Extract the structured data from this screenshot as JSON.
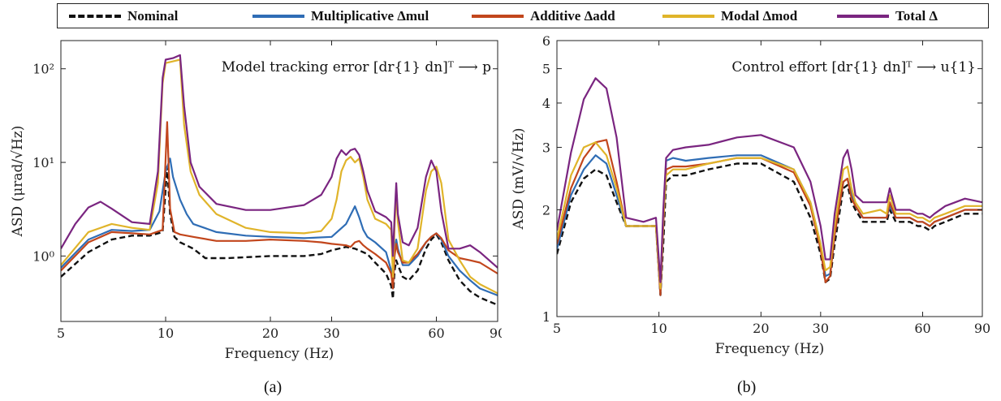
{
  "legend": {
    "items": [
      {
        "label": "Nominal",
        "color": "#111111",
        "style": "dashed"
      },
      {
        "label": "Multiplicative Δmul",
        "color": "#2f6db5",
        "style": "solid"
      },
      {
        "label": "Additive Δadd",
        "color": "#c2461c",
        "style": "solid"
      },
      {
        "label": "Modal Δmod",
        "color": "#e0b42a",
        "style": "solid"
      },
      {
        "label": "Total Δ",
        "color": "#7a2580",
        "style": "solid"
      }
    ]
  },
  "captions": {
    "a": "(a)",
    "b": "(b)"
  },
  "chart_data": [
    {
      "type": "line",
      "title": "Model tracking error [dr{1} dn]ᵀ ⟶ p",
      "xlabel": "Frequency (Hz)",
      "ylabel": "ASD (μrad/√Hz)",
      "xscale": "log",
      "yscale": "log",
      "xlim": [
        5,
        90
      ],
      "ylim": [
        0.2,
        200
      ],
      "xticks": [
        5,
        10,
        20,
        30,
        60,
        90
      ],
      "xticklabels": [
        "5",
        "10",
        "20",
        "30",
        "60",
        "90"
      ],
      "yticks": [
        1,
        10,
        100
      ],
      "yticklabels": [
        "10⁰",
        "10¹",
        "10²"
      ],
      "series": [
        {
          "name": "Nominal",
          "x": [
            5,
            6,
            7,
            8,
            9,
            9.8,
            10.1,
            10.3,
            10.6,
            11,
            12,
            13,
            15,
            20,
            25,
            28,
            30,
            33,
            35,
            38,
            40,
            43,
            44.5,
            45,
            45.5,
            46,
            46.5,
            48,
            50,
            53,
            56,
            58,
            60,
            62,
            65,
            70,
            75,
            80,
            90
          ],
          "y": [
            0.6,
            1.1,
            1.5,
            1.65,
            1.65,
            1.8,
            9,
            2.8,
            1.6,
            1.4,
            1.2,
            0.95,
            0.95,
            1.0,
            1.0,
            1.05,
            1.15,
            1.25,
            1.2,
            1.05,
            0.85,
            0.65,
            0.48,
            0.35,
            0.7,
            0.9,
            0.8,
            0.6,
            0.55,
            0.7,
            1.2,
            1.5,
            1.7,
            1.4,
            0.9,
            0.55,
            0.42,
            0.36,
            0.3
          ]
        },
        {
          "name": "Multiplicative Δmul",
          "x": [
            5,
            6,
            7,
            8,
            9,
            9.6,
            10,
            10.3,
            10.5,
            11,
            11.5,
            12,
            14,
            17,
            20,
            25,
            30,
            33,
            35,
            36,
            37,
            38,
            40,
            43,
            44.5,
            45,
            45.5,
            46,
            46.5,
            48,
            50,
            53,
            56,
            58,
            60,
            62,
            65,
            70,
            75,
            80,
            90
          ],
          "y": [
            0.75,
            1.5,
            1.9,
            1.85,
            1.9,
            3,
            8,
            11,
            7,
            4,
            2.8,
            2.2,
            1.8,
            1.65,
            1.6,
            1.55,
            1.6,
            2.2,
            3.4,
            2.6,
            1.9,
            1.6,
            1.4,
            1.1,
            0.7,
            0.45,
            1.1,
            1.5,
            1.2,
            0.8,
            0.8,
            1.0,
            1.4,
            1.6,
            1.75,
            1.5,
            1.0,
            0.7,
            0.55,
            0.45,
            0.38
          ]
        },
        {
          "name": "Additive Δadd",
          "x": [
            5,
            6,
            7,
            8,
            9,
            9.8,
            10.1,
            10.3,
            10.6,
            11,
            12,
            14,
            17,
            20,
            25,
            28,
            30,
            33,
            34,
            35,
            36,
            37,
            38,
            40,
            43,
            44.5,
            45,
            45.5,
            46,
            46.5,
            48,
            50,
            53,
            56,
            58,
            60,
            62,
            65,
            70,
            75,
            80,
            90
          ],
          "y": [
            0.7,
            1.4,
            1.8,
            1.75,
            1.7,
            1.9,
            27,
            3.2,
            1.8,
            1.7,
            1.6,
            1.45,
            1.45,
            1.5,
            1.45,
            1.4,
            1.35,
            1.3,
            1.25,
            1.4,
            1.45,
            1.3,
            1.2,
            1.05,
            0.85,
            0.65,
            0.45,
            1.0,
            1.35,
            1.1,
            0.85,
            0.85,
            1.05,
            1.4,
            1.6,
            1.75,
            1.55,
            1.15,
            0.95,
            0.9,
            0.85,
            0.65
          ]
        },
        {
          "name": "Modal Δmod",
          "x": [
            5,
            6,
            7,
            8,
            9,
            9.5,
            9.8,
            10,
            10.5,
            11,
            11.3,
            11.8,
            12.5,
            14,
            17,
            20,
            25,
            28,
            30,
            31,
            32,
            33,
            34,
            35,
            36,
            37,
            38,
            40,
            43,
            44.5,
            45,
            45.5,
            46,
            46.5,
            48,
            50,
            53,
            56,
            58,
            60,
            62,
            65,
            70,
            75,
            80,
            90
          ],
          "y": [
            0.8,
            1.8,
            2.2,
            2.0,
            1.9,
            6,
            70,
            115,
            120,
            125,
            25,
            8,
            4.5,
            2.8,
            2.0,
            1.8,
            1.75,
            1.85,
            2.5,
            4,
            8,
            10.5,
            11.5,
            10,
            11,
            7,
            4,
            2.5,
            2.2,
            1.9,
            0.6,
            2.0,
            5,
            2.3,
            0.9,
            0.85,
            1.2,
            5,
            8,
            9,
            6,
            1.5,
            0.9,
            0.6,
            0.5,
            0.4
          ]
        },
        {
          "name": "Total Δ",
          "x": [
            5,
            5.5,
            6,
            6.5,
            7,
            8,
            9,
            9.5,
            9.8,
            10,
            10.5,
            11,
            11.3,
            11.8,
            12.5,
            14,
            17,
            20,
            25,
            28,
            30,
            31,
            32,
            33,
            34,
            35,
            36,
            37,
            38,
            40,
            43,
            44.5,
            45,
            45.5,
            46,
            46.5,
            48,
            50,
            53,
            56,
            58,
            60,
            62,
            65,
            70,
            75,
            80,
            90
          ],
          "y": [
            1.2,
            2.2,
            3.3,
            3.8,
            3.2,
            2.3,
            2.2,
            8,
            80,
            125,
            130,
            140,
            40,
            10,
            5.5,
            3.6,
            3.1,
            3.1,
            3.5,
            4.5,
            7,
            11,
            13.5,
            12,
            13.5,
            14,
            12,
            8,
            5,
            3,
            2.6,
            2.3,
            1.0,
            2.6,
            6,
            2.8,
            1.4,
            1.3,
            2.0,
            7,
            10.5,
            8,
            3,
            1.2,
            1.2,
            1.3,
            1.1,
            0.75
          ]
        }
      ]
    },
    {
      "type": "line",
      "title": "Control effort [dr{1} dn]ᵀ ⟶ u{1}",
      "xlabel": "Frequency (Hz)",
      "ylabel": "ASD (mV/√Hz)",
      "xscale": "log",
      "yscale": "log",
      "xlim": [
        5,
        90
      ],
      "ylim": [
        1,
        6
      ],
      "xticks": [
        5,
        10,
        20,
        30,
        60,
        90
      ],
      "xticklabels": [
        "5",
        "10",
        "20",
        "30",
        "60",
        "90"
      ],
      "yticks": [
        1,
        2,
        3,
        4,
        5,
        6
      ],
      "yticklabels": [
        "1",
        "2",
        "3",
        "4",
        "5",
        "6"
      ],
      "series": [
        {
          "name": "Nominal",
          "x": [
            5,
            5.5,
            6,
            6.5,
            7,
            7.5,
            8,
            9,
            9.8,
            10.1,
            10.3,
            10.5,
            11,
            12,
            14,
            17,
            20,
            25,
            28,
            30,
            31,
            32,
            33,
            35,
            36,
            37,
            38,
            40,
            45,
            47,
            48,
            50,
            55,
            58,
            60,
            63,
            65,
            70,
            80,
            90
          ],
          "y": [
            1.5,
            2.1,
            2.45,
            2.6,
            2.5,
            2.1,
            1.8,
            1.8,
            1.8,
            1.15,
            1.6,
            2.4,
            2.5,
            2.5,
            2.6,
            2.7,
            2.7,
            2.4,
            1.9,
            1.5,
            1.25,
            1.28,
            1.6,
            2.3,
            2.35,
            2.1,
            2.0,
            1.85,
            1.85,
            1.85,
            2.0,
            1.85,
            1.85,
            1.8,
            1.8,
            1.75,
            1.8,
            1.85,
            1.95,
            1.95
          ]
        },
        {
          "name": "Multiplicative Δmul",
          "x": [
            5,
            5.5,
            6,
            6.5,
            7,
            7.5,
            8,
            9,
            9.8,
            10.1,
            10.3,
            10.5,
            11,
            12,
            14,
            17,
            20,
            25,
            28,
            30,
            31,
            32,
            33,
            35,
            36,
            37,
            38,
            40,
            45,
            47,
            48,
            50,
            55,
            58,
            60,
            63,
            65,
            70,
            80,
            90
          ],
          "y": [
            1.55,
            2.2,
            2.6,
            2.85,
            2.7,
            2.2,
            1.8,
            1.8,
            1.8,
            1.15,
            1.8,
            2.75,
            2.8,
            2.75,
            2.8,
            2.85,
            2.85,
            2.6,
            2.1,
            1.6,
            1.3,
            1.32,
            1.7,
            2.4,
            2.45,
            2.2,
            2.05,
            1.9,
            1.9,
            1.9,
            2.05,
            1.9,
            1.9,
            1.85,
            1.85,
            1.8,
            1.85,
            1.9,
            2.0,
            2.0
          ]
        },
        {
          "name": "Additive Δadd",
          "x": [
            5,
            5.5,
            6,
            6.5,
            7,
            7.5,
            8,
            9,
            9.8,
            10.1,
            10.3,
            10.5,
            11,
            12,
            14,
            17,
            20,
            25,
            28,
            30,
            31,
            32,
            33,
            35,
            36,
            37,
            38,
            40,
            45,
            47,
            48,
            50,
            55,
            58,
            60,
            63,
            65,
            70,
            80,
            90
          ],
          "y": [
            1.6,
            2.3,
            2.8,
            3.1,
            3.15,
            2.4,
            1.8,
            1.8,
            1.8,
            1.15,
            1.8,
            2.6,
            2.65,
            2.65,
            2.7,
            2.8,
            2.8,
            2.55,
            2.05,
            1.55,
            1.25,
            1.3,
            1.7,
            2.4,
            2.45,
            2.15,
            2.05,
            1.9,
            1.9,
            1.9,
            2.1,
            1.9,
            1.9,
            1.85,
            1.85,
            1.8,
            1.85,
            1.9,
            2.0,
            2.0
          ]
        },
        {
          "name": "Modal Δmod",
          "x": [
            5,
            5.5,
            6,
            6.5,
            7,
            7.5,
            8,
            9,
            9.8,
            10.1,
            10.3,
            10.5,
            11,
            12,
            14,
            17,
            20,
            25,
            28,
            30,
            31,
            32,
            33,
            35,
            36,
            37,
            38,
            40,
            45,
            47,
            48,
            50,
            55,
            58,
            60,
            63,
            65,
            70,
            80,
            90
          ],
          "y": [
            1.65,
            2.5,
            3.0,
            3.1,
            2.85,
            2.3,
            1.8,
            1.8,
            1.8,
            1.2,
            1.9,
            2.5,
            2.6,
            2.6,
            2.7,
            2.8,
            2.8,
            2.6,
            2.1,
            1.6,
            1.35,
            1.38,
            1.8,
            2.6,
            2.65,
            2.3,
            2.1,
            1.95,
            2.0,
            1.95,
            2.2,
            1.95,
            1.95,
            1.9,
            1.9,
            1.85,
            1.9,
            1.95,
            2.05,
            2.05
          ]
        },
        {
          "name": "Total Δ",
          "x": [
            5,
            5.5,
            6,
            6.5,
            7,
            7.5,
            8,
            9,
            9.8,
            10.1,
            10.3,
            10.5,
            11,
            12,
            14,
            17,
            20,
            25,
            28,
            30,
            31,
            32,
            33,
            35,
            36,
            37,
            38,
            40,
            45,
            47,
            48,
            50,
            55,
            58,
            60,
            63,
            65,
            70,
            80,
            90
          ],
          "y": [
            1.75,
            2.9,
            4.1,
            4.7,
            4.4,
            3.2,
            1.9,
            1.85,
            1.9,
            1.25,
            2.0,
            2.8,
            2.95,
            3.0,
            3.05,
            3.2,
            3.25,
            3.0,
            2.4,
            1.8,
            1.45,
            1.45,
            1.95,
            2.8,
            2.95,
            2.6,
            2.2,
            2.1,
            2.1,
            2.1,
            2.3,
            2.0,
            2.0,
            1.95,
            1.95,
            1.9,
            1.95,
            2.05,
            2.15,
            2.1
          ]
        }
      ]
    }
  ]
}
